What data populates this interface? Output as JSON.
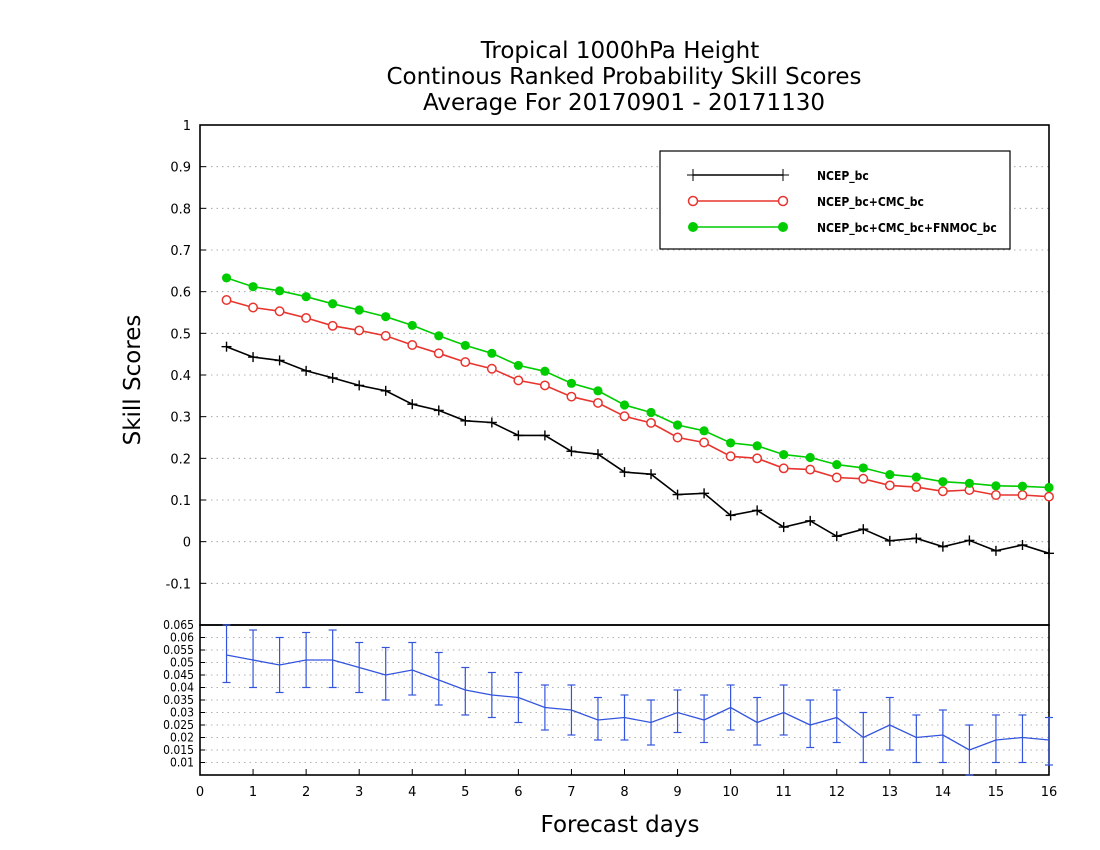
{
  "chart_data": [
    {
      "type": "line",
      "title": [
        "Tropical 1000hPa Height",
        "Continous Ranked Probability Skill Scores",
        "Average For 20170901 - 20171130"
      ],
      "xlabel": "Forecast days",
      "ylabel": "Skill Scores",
      "xlim": [
        0,
        16
      ],
      "ylim": [
        -0.2,
        1
      ],
      "x_ticks": [
        "0",
        "1",
        "2",
        "3",
        "4",
        "5",
        "6",
        "7",
        "8",
        "9",
        "10",
        "11",
        "12",
        "13",
        "14",
        "15",
        "16"
      ],
      "y_ticks": [
        "-0.1",
        "0",
        "0.1",
        "0.2",
        "0.3",
        "0.4",
        "0.5",
        "0.6",
        "0.7",
        "0.8",
        "0.9",
        "1"
      ],
      "grid": true,
      "legend_position": "top-right",
      "x": [
        0.5,
        1,
        1.5,
        2,
        2.5,
        3,
        3.5,
        4,
        4.5,
        5,
        5.5,
        6,
        6.5,
        7,
        7.5,
        8,
        8.5,
        9,
        9.5,
        10,
        10.5,
        11,
        11.5,
        12,
        12.5,
        13,
        13.5,
        14,
        14.5,
        15,
        15.5,
        16
      ],
      "series": [
        {
          "name": "NCEP_bc",
          "color": "#000000",
          "marker": "plus",
          "values": [
            0.468,
            0.443,
            0.435,
            0.41,
            0.393,
            0.375,
            0.362,
            0.33,
            0.315,
            0.29,
            0.286,
            0.255,
            0.255,
            0.217,
            0.21,
            0.167,
            0.162,
            0.113,
            0.116,
            0.063,
            0.075,
            0.035,
            0.05,
            0.013,
            0.03,
            0.002,
            0.008,
            -0.012,
            0.003,
            -0.022,
            -0.008,
            -0.028
          ]
        },
        {
          "name": "NCEP_bc+CMC_bc",
          "color": "#e8342e",
          "marker": "open-circle",
          "values": [
            0.58,
            0.562,
            0.553,
            0.537,
            0.518,
            0.507,
            0.494,
            0.472,
            0.452,
            0.431,
            0.415,
            0.387,
            0.375,
            0.348,
            0.333,
            0.301,
            0.285,
            0.25,
            0.238,
            0.205,
            0.2,
            0.176,
            0.173,
            0.154,
            0.151,
            0.135,
            0.131,
            0.121,
            0.124,
            0.112,
            0.112,
            0.108
          ]
        },
        {
          "name": "NCEP_bc+CMC_bc+FNMOC_bc",
          "color": "#00cc00",
          "marker": "filled-circle",
          "values": [
            0.633,
            0.612,
            0.602,
            0.588,
            0.571,
            0.556,
            0.54,
            0.519,
            0.494,
            0.471,
            0.452,
            0.423,
            0.409,
            0.38,
            0.362,
            0.328,
            0.31,
            0.28,
            0.266,
            0.237,
            0.23,
            0.209,
            0.202,
            0.185,
            0.177,
            0.161,
            0.155,
            0.144,
            0.14,
            0.134,
            0.133,
            0.13
          ]
        }
      ]
    },
    {
      "type": "line",
      "ylim": [
        0.005,
        0.065
      ],
      "xlim": [
        0,
        16
      ],
      "y_ticks": [
        "0.01",
        "0.015",
        "0.02",
        "0.025",
        "0.03",
        "0.035",
        "0.04",
        "0.045",
        "0.05",
        "0.055",
        "0.06",
        "0.065"
      ],
      "grid": true,
      "error_bars": true,
      "x": [
        0.5,
        1,
        1.5,
        2,
        2.5,
        3,
        3.5,
        4,
        4.5,
        5,
        5.5,
        6,
        6.5,
        7,
        7.5,
        8,
        8.5,
        9,
        9.5,
        10,
        10.5,
        11,
        11.5,
        12,
        12.5,
        13,
        13.5,
        14,
        14.5,
        15,
        15.5,
        16
      ],
      "series": [
        {
          "color": "#3355dd",
          "values": [
            0.053,
            0.051,
            0.049,
            0.051,
            0.051,
            0.048,
            0.045,
            0.047,
            0.043,
            0.039,
            0.037,
            0.036,
            0.032,
            0.031,
            0.027,
            0.028,
            0.026,
            0.03,
            0.027,
            0.032,
            0.026,
            0.03,
            0.025,
            0.028,
            0.02,
            0.025,
            0.02,
            0.021,
            0.015,
            0.019,
            0.02,
            0.019
          ],
          "err_low": [
            0.042,
            0.04,
            0.038,
            0.04,
            0.04,
            0.038,
            0.035,
            0.037,
            0.033,
            0.029,
            0.028,
            0.026,
            0.023,
            0.021,
            0.019,
            0.019,
            0.017,
            0.022,
            0.018,
            0.023,
            0.017,
            0.021,
            0.016,
            0.018,
            0.01,
            0.015,
            0.01,
            0.01,
            0.005,
            0.01,
            0.01,
            0.009
          ],
          "err_high": [
            0.065,
            0.063,
            0.06,
            0.062,
            0.063,
            0.058,
            0.056,
            0.058,
            0.054,
            0.048,
            0.046,
            0.046,
            0.041,
            0.041,
            0.036,
            0.037,
            0.035,
            0.039,
            0.037,
            0.041,
            0.036,
            0.041,
            0.035,
            0.039,
            0.03,
            0.036,
            0.029,
            0.031,
            0.025,
            0.029,
            0.029,
            0.028
          ]
        }
      ]
    }
  ]
}
